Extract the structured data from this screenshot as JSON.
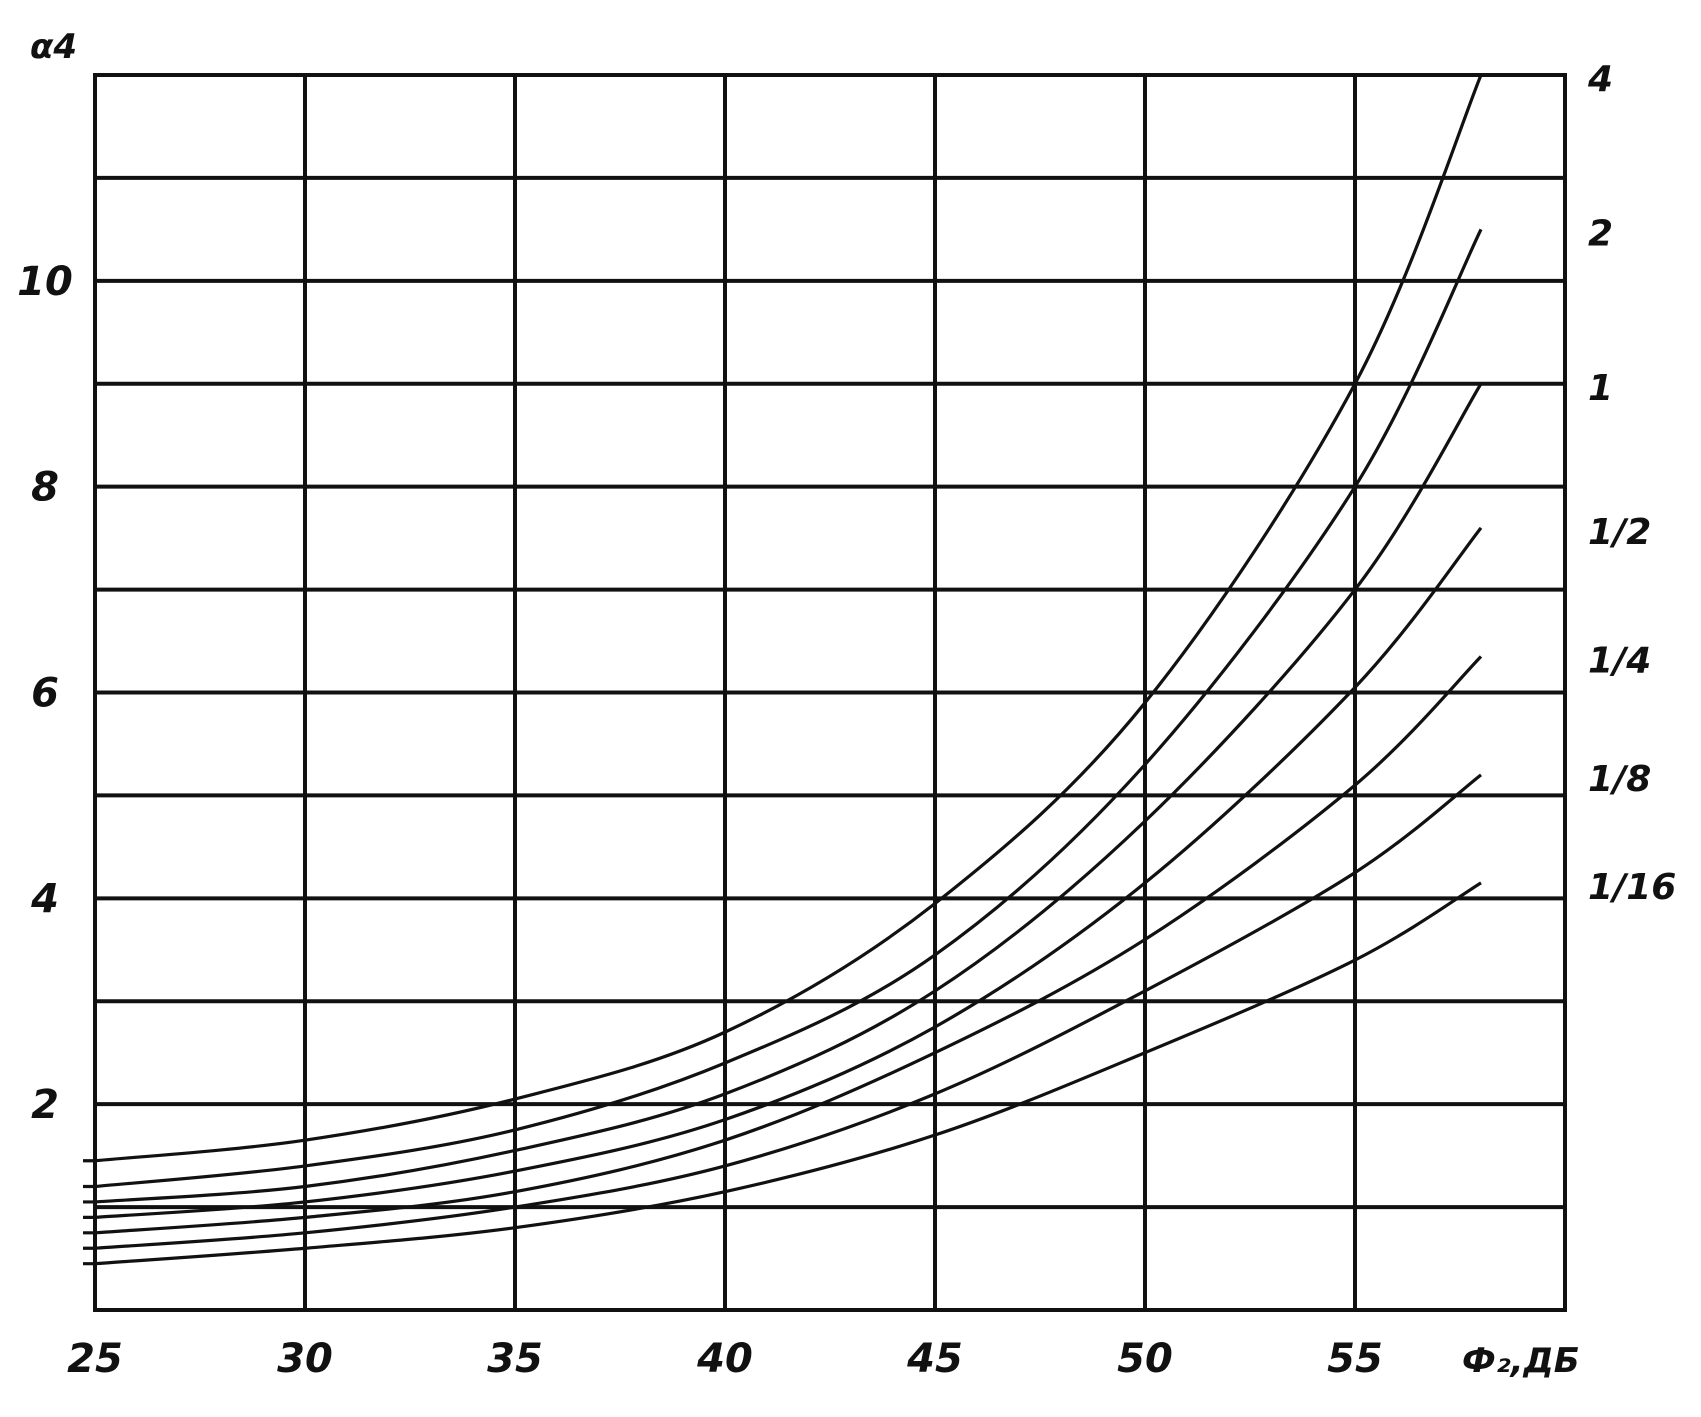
{
  "chart_data": {
    "type": "line",
    "xlabel": "Ф₂,ДБ",
    "ylabel": "α4",
    "xlim": [
      25,
      60
    ],
    "ylim": [
      0,
      12
    ],
    "x_ticks": [
      25,
      30,
      35,
      40,
      45,
      50,
      55
    ],
    "y_ticks": [
      2,
      4,
      6,
      8,
      10
    ],
    "grid": true,
    "x": [
      25,
      30,
      35,
      40,
      45,
      50,
      55,
      58
    ],
    "series": [
      {
        "name": "4",
        "values": [
          1.45,
          1.65,
          2.05,
          2.7,
          3.95,
          5.9,
          9.0,
          12.0
        ]
      },
      {
        "name": "2",
        "values": [
          1.2,
          1.4,
          1.75,
          2.4,
          3.45,
          5.3,
          8.0,
          10.5
        ]
      },
      {
        "name": "1",
        "values": [
          1.05,
          1.2,
          1.55,
          2.1,
          3.1,
          4.75,
          7.0,
          9.0
        ]
      },
      {
        "name": "1/2",
        "values": [
          0.9,
          1.05,
          1.35,
          1.85,
          2.75,
          4.15,
          6.05,
          7.6
        ]
      },
      {
        "name": "1/4",
        "values": [
          0.75,
          0.9,
          1.15,
          1.65,
          2.5,
          3.6,
          5.1,
          6.35
        ]
      },
      {
        "name": "1/8",
        "values": [
          0.6,
          0.75,
          1.0,
          1.4,
          2.1,
          3.1,
          4.25,
          5.2
        ]
      },
      {
        "name": "1/16",
        "values": [
          0.45,
          0.6,
          0.8,
          1.15,
          1.7,
          2.5,
          3.4,
          4.15
        ]
      }
    ]
  }
}
